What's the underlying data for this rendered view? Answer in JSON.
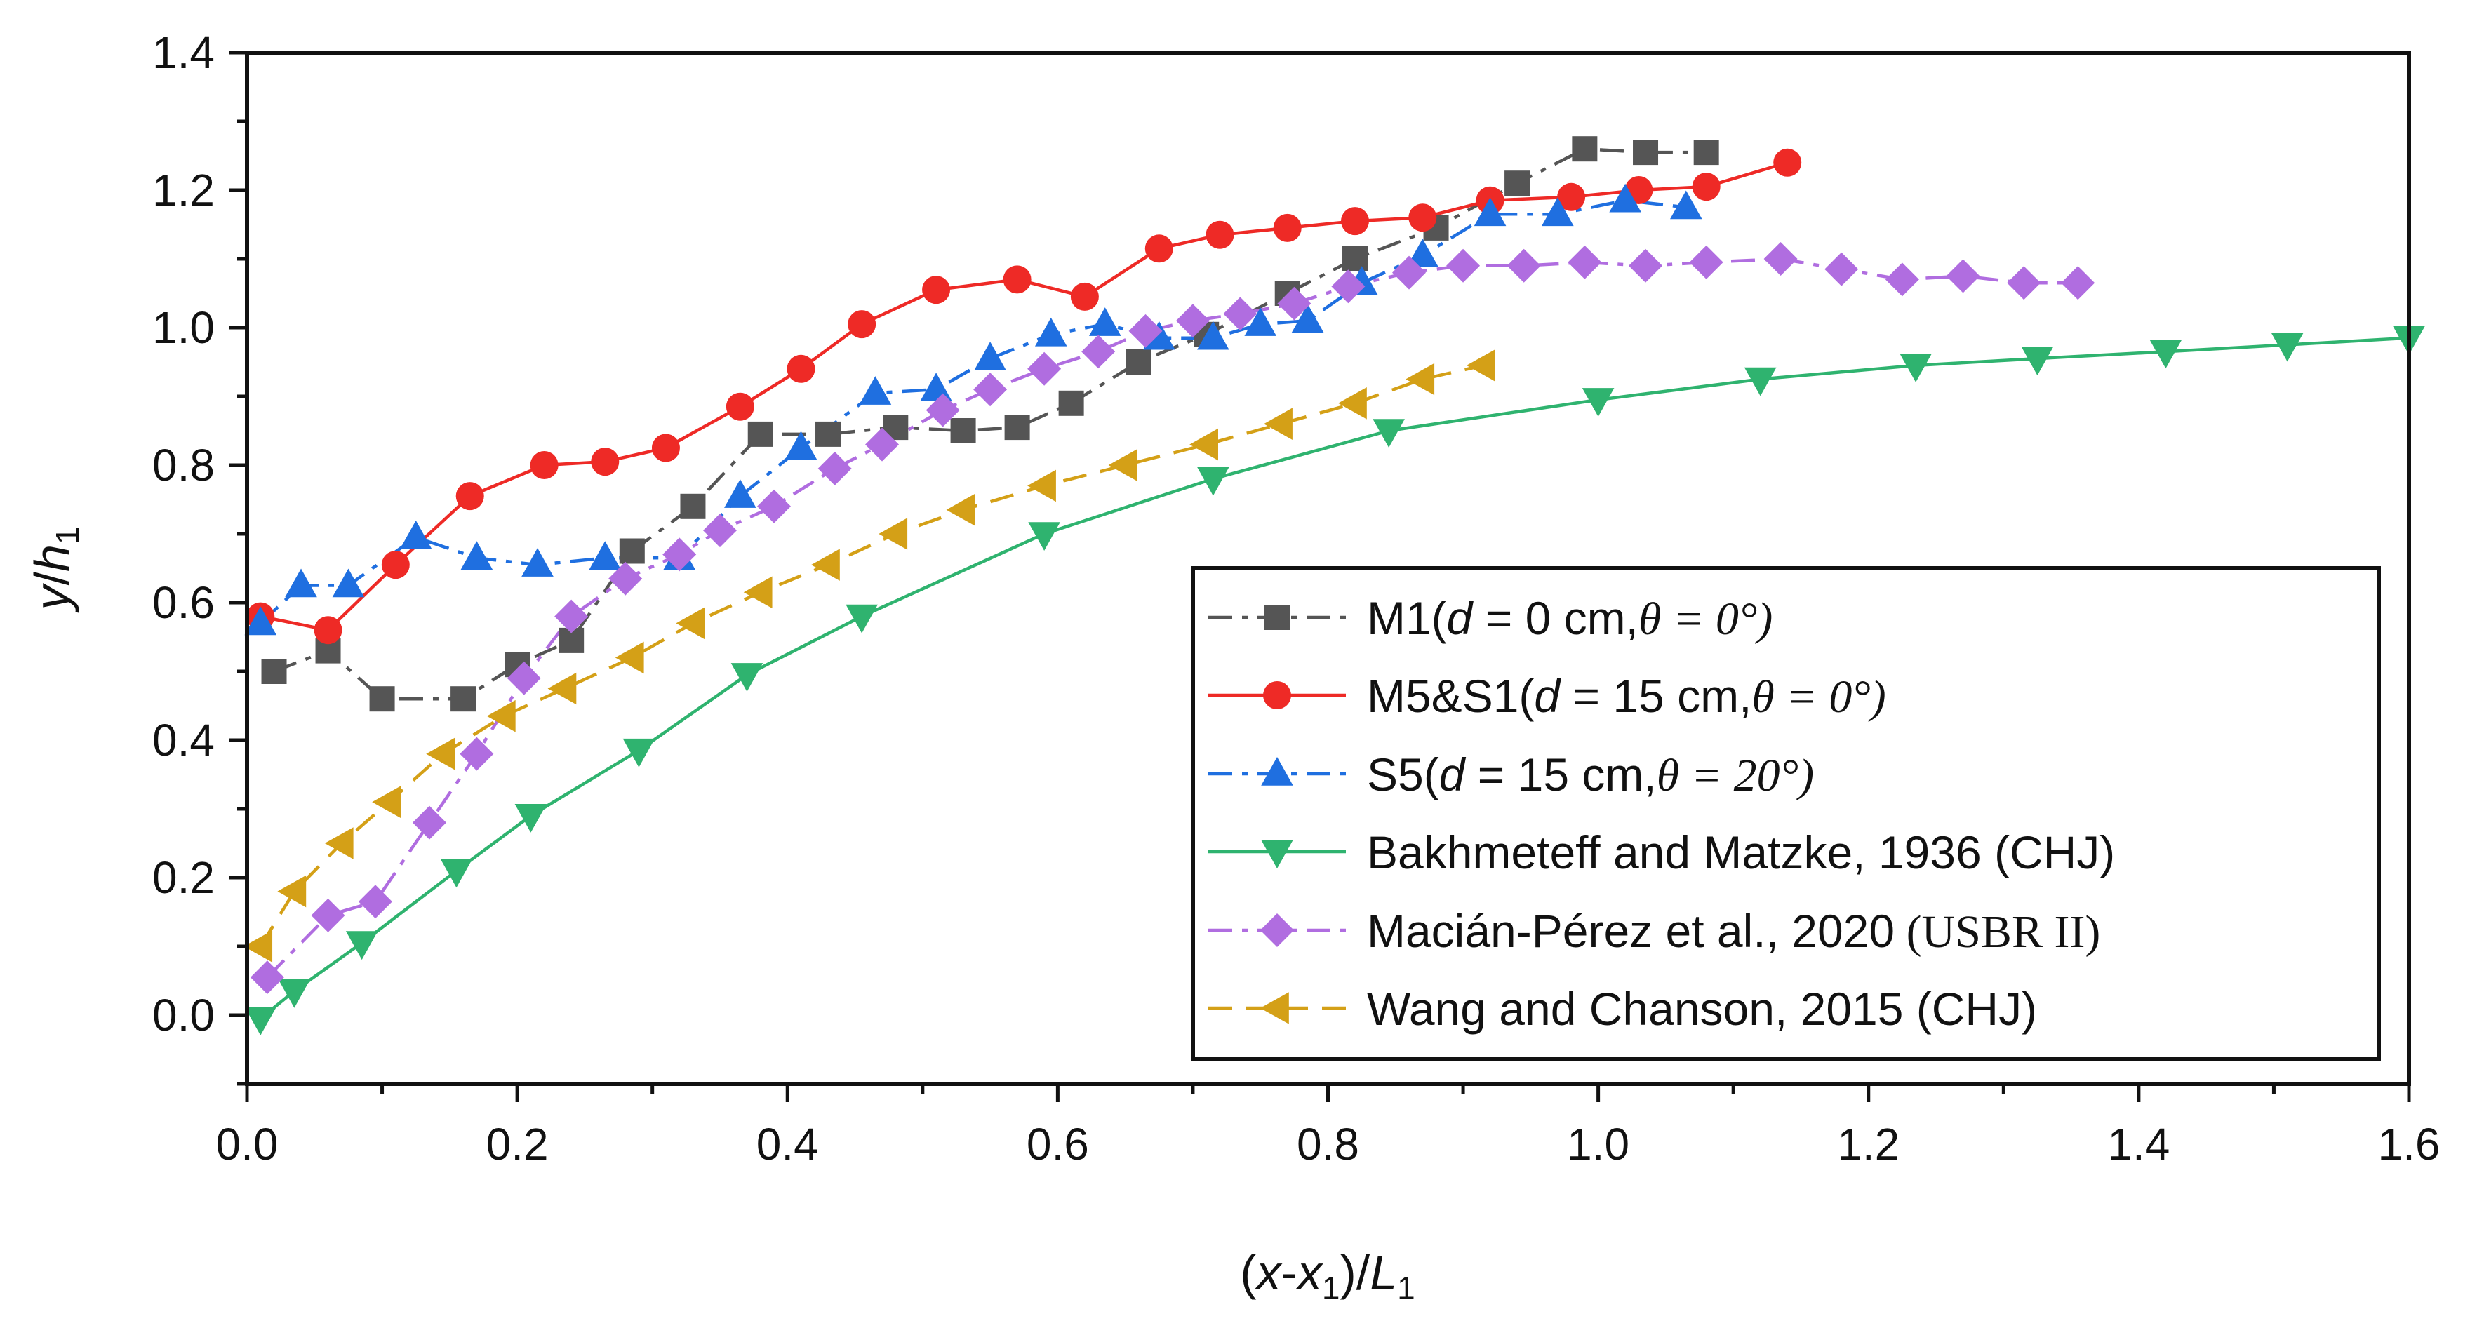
{
  "chart_data": {
    "type": "line",
    "title": "",
    "xlabel": "(x-x1)/L1",
    "ylabel": "y/h1",
    "xlim": [
      0.0,
      1.6
    ],
    "ylim": [
      -0.1,
      1.4
    ],
    "xticks": [
      "0.0",
      "0.2",
      "0.4",
      "0.6",
      "0.8",
      "1.0",
      "1.2",
      "1.4",
      "1.6"
    ],
    "yticks": [
      "0.0",
      "0.2",
      "0.4",
      "0.6",
      "0.8",
      "1.0",
      "1.2",
      "1.4"
    ],
    "grid": false,
    "legend_position": "bottom-right",
    "series": [
      {
        "name": "M1(d = 0 cm, θ = 0°)",
        "legend": {
          "main": "M1(",
          "var": "d",
          "mid": " = 0 cm,",
          "theta": "θ = 0°)"
        },
        "marker": "square",
        "color": "#555555",
        "dash": "dashdot",
        "x": [
          0.02,
          0.06,
          0.1,
          0.16,
          0.2,
          0.24,
          0.285,
          0.33,
          0.38,
          0.43,
          0.48,
          0.53,
          0.57,
          0.61,
          0.66,
          0.71,
          0.77,
          0.82,
          0.88,
          0.94,
          0.99,
          1.035,
          1.08
        ],
        "y": [
          0.5,
          0.53,
          0.46,
          0.46,
          0.51,
          0.545,
          0.675,
          0.74,
          0.845,
          0.845,
          0.855,
          0.85,
          0.855,
          0.89,
          0.95,
          0.99,
          1.05,
          1.1,
          1.145,
          1.21,
          1.26,
          1.255,
          1.255
        ]
      },
      {
        "name": "M5&S1(d = 15 cm, θ = 0°)",
        "legend": {
          "main": "M5&S1(",
          "var": "d",
          "mid": " = 15 cm,",
          "theta": "θ = 0°)"
        },
        "marker": "circle",
        "color": "#ee2a26",
        "dash": "solid",
        "x": [
          0.01,
          0.06,
          0.11,
          0.165,
          0.22,
          0.265,
          0.31,
          0.365,
          0.41,
          0.455,
          0.51,
          0.57,
          0.62,
          0.675,
          0.72,
          0.77,
          0.82,
          0.87,
          0.92,
          0.98,
          1.03,
          1.08,
          1.14
        ],
        "y": [
          0.58,
          0.56,
          0.655,
          0.755,
          0.8,
          0.805,
          0.825,
          0.885,
          0.94,
          1.005,
          1.055,
          1.07,
          1.045,
          1.115,
          1.135,
          1.145,
          1.155,
          1.16,
          1.185,
          1.19,
          1.2,
          1.205,
          1.24
        ]
      },
      {
        "name": "S5(d = 15 cm, θ = 20°)",
        "legend": {
          "main": "S5(",
          "var": "d",
          "mid": " = 15 cm,",
          "theta": "θ = 20°)"
        },
        "marker": "triangle-up",
        "color": "#1f6fe0",
        "dash": "dashdot",
        "x": [
          0.01,
          0.04,
          0.075,
          0.125,
          0.17,
          0.215,
          0.265,
          0.32,
          0.365,
          0.41,
          0.465,
          0.51,
          0.55,
          0.595,
          0.635,
          0.675,
          0.715,
          0.75,
          0.785,
          0.825,
          0.87,
          0.92,
          0.97,
          1.02,
          1.065
        ],
        "y": [
          0.57,
          0.625,
          0.625,
          0.695,
          0.665,
          0.655,
          0.665,
          0.665,
          0.755,
          0.825,
          0.905,
          0.91,
          0.955,
          0.99,
          1.005,
          0.985,
          0.985,
          1.005,
          1.01,
          1.065,
          1.105,
          1.165,
          1.165,
          1.185,
          1.175
        ]
      },
      {
        "name": "Bakhmeteff and Matzke, 1936 (CHJ)",
        "legend": {
          "main": "Bakhmeteff and Matzke, 1936 (CHJ)"
        },
        "marker": "triangle-down",
        "color": "#2fb36f",
        "dash": "solid",
        "x": [
          0.01,
          0.035,
          0.085,
          0.155,
          0.21,
          0.29,
          0.37,
          0.455,
          0.59,
          0.715,
          0.845,
          1.0,
          1.12,
          1.235,
          1.325,
          1.42,
          1.51,
          1.6
        ],
        "y": [
          -0.005,
          0.035,
          0.105,
          0.21,
          0.29,
          0.385,
          0.495,
          0.58,
          0.7,
          0.78,
          0.85,
          0.895,
          0.925,
          0.945,
          0.955,
          0.965,
          0.975,
          0.985
        ]
      },
      {
        "name": "Macián-Pérez et al., 2020 (USBR II)",
        "legend": {
          "main": "Macián-Pérez et al., 2020",
          "serif": " (USBR II)"
        },
        "marker": "diamond",
        "color": "#b06de0",
        "dash": "dashdot",
        "x": [
          0.015,
          0.06,
          0.095,
          0.135,
          0.17,
          0.205,
          0.24,
          0.28,
          0.32,
          0.35,
          0.39,
          0.435,
          0.47,
          0.515,
          0.55,
          0.59,
          0.63,
          0.665,
          0.7,
          0.735,
          0.775,
          0.815,
          0.86,
          0.9,
          0.945,
          0.99,
          1.035,
          1.08,
          1.135,
          1.18,
          1.225,
          1.27,
          1.315,
          1.355
        ],
        "y": [
          0.055,
          0.145,
          0.165,
          0.28,
          0.38,
          0.49,
          0.58,
          0.635,
          0.67,
          0.705,
          0.74,
          0.795,
          0.83,
          0.88,
          0.91,
          0.94,
          0.965,
          0.995,
          1.01,
          1.02,
          1.035,
          1.06,
          1.08,
          1.09,
          1.09,
          1.095,
          1.09,
          1.095,
          1.1,
          1.085,
          1.07,
          1.075,
          1.065,
          1.065
        ]
      },
      {
        "name": "Wang and Chanson, 2015 (CHJ)",
        "legend": {
          "main": "Wang and Chanson, 2015 (CHJ)"
        },
        "marker": "triangle-left",
        "color": "#d4a017",
        "dash": "dashed",
        "x": [
          0.01,
          0.035,
          0.07,
          0.105,
          0.145,
          0.19,
          0.235,
          0.285,
          0.33,
          0.38,
          0.43,
          0.48,
          0.53,
          0.59,
          0.65,
          0.71,
          0.765,
          0.82,
          0.87,
          0.915
        ],
        "y": [
          0.1,
          0.18,
          0.25,
          0.31,
          0.38,
          0.435,
          0.475,
          0.52,
          0.57,
          0.615,
          0.655,
          0.7,
          0.735,
          0.77,
          0.8,
          0.83,
          0.86,
          0.89,
          0.925,
          0.945
        ]
      }
    ]
  }
}
